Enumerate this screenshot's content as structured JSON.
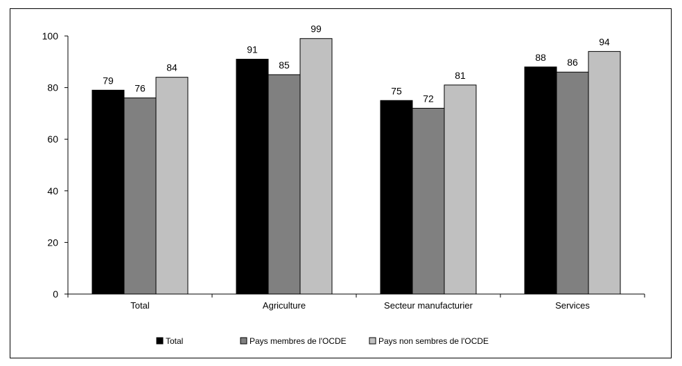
{
  "chart_data": {
    "type": "bar",
    "title": "",
    "xlabel": "",
    "ylabel": "",
    "ylim": [
      0,
      100
    ],
    "yticks": [
      0,
      20,
      40,
      60,
      80,
      100
    ],
    "grid": false,
    "legend_position": "bottom",
    "categories": [
      "Total",
      "Agriculture",
      "Secteur manufacturier",
      "Services"
    ],
    "series": [
      {
        "name": "Total",
        "color": "#000000",
        "values": [
          79,
          91,
          75,
          88
        ]
      },
      {
        "name": "Pays membres de l'OCDE",
        "color": "#808080",
        "values": [
          76,
          85,
          72,
          86
        ]
      },
      {
        "name": "Pays non sembres de l'OCDE",
        "color": "#c0c0c0",
        "values": [
          84,
          99,
          81,
          94
        ]
      }
    ]
  }
}
